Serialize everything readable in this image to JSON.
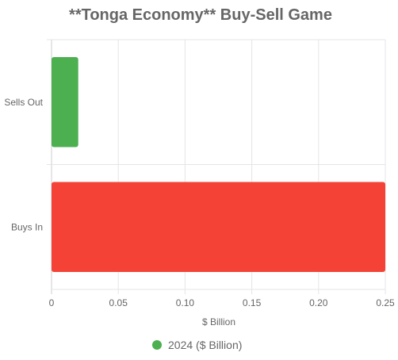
{
  "chart_data": {
    "type": "bar",
    "orientation": "horizontal",
    "title": "**Tonga Economy** Buy-Sell Game",
    "categories": [
      "Sells Out",
      "Buys In"
    ],
    "series": [
      {
        "name": "2024 ($ Billion)",
        "values": [
          0.02,
          0.25
        ]
      }
    ],
    "bar_colors": [
      "#4caf50",
      "#f44336"
    ],
    "legend_color": "#4caf50",
    "xlabel": "$ Billion",
    "ylabel": "",
    "xlim": [
      0,
      0.25
    ],
    "x_ticks": [
      0,
      0.05,
      0.1,
      0.15,
      0.2,
      0.25
    ],
    "x_tick_labels": [
      "0",
      "0.05",
      "0.10",
      "0.15",
      "0.20",
      "0.25"
    ],
    "grid": true,
    "legend_position": "bottom"
  }
}
